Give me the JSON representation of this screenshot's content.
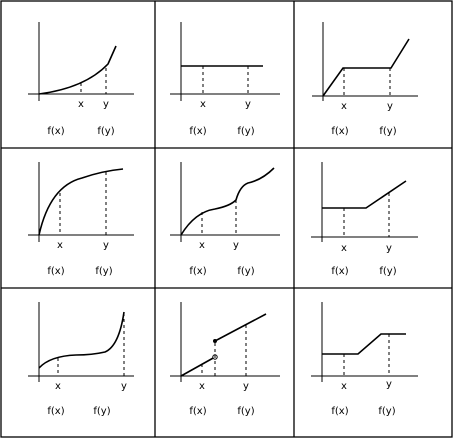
{
  "panels": [
    {
      "x_label": "x",
      "y_label": "y",
      "fx_label": "f(x)",
      "fy_label": "f(y)"
    },
    {
      "x_label": "x",
      "y_label": "y",
      "fx_label": "f(x)",
      "fy_label": "f(y)"
    },
    {
      "x_label": "x",
      "y_label": "y",
      "fx_label": "f(x)",
      "fy_label": "f(y)"
    },
    {
      "x_label": "x",
      "y_label": "y",
      "fx_label": "f(x)",
      "fy_label": "f(y)"
    },
    {
      "x_label": "x",
      "y_label": "y",
      "fx_label": "f(x)",
      "fy_label": "f(y)"
    },
    {
      "x_label": "x",
      "y_label": "y",
      "fx_label": "f(x)",
      "fy_label": "f(y)"
    },
    {
      "x_label": "x",
      "y_label": "y",
      "fx_label": "f(x)",
      "fy_label": "f(y)"
    },
    {
      "x_label": "x",
      "y_label": "y",
      "fx_label": "f(x)",
      "fy_label": "f(y)"
    },
    {
      "x_label": "x",
      "y_label": "y",
      "fx_label": "f(x)",
      "fy_label": "f(y)"
    }
  ]
}
